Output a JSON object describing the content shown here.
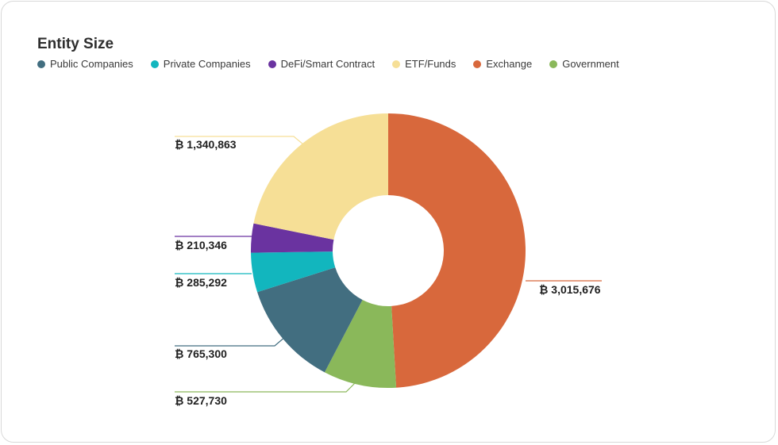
{
  "chart_data": {
    "type": "pie",
    "donut": true,
    "title": "Entity Size",
    "legend_position": "top-left",
    "categories": [
      "Public Companies",
      "Private Companies",
      "DeFi/Smart Contract",
      "ETF/Funds",
      "Exchange",
      "Government"
    ],
    "values": [
      765300,
      285292,
      210346,
      1340863,
      3015676,
      527730
    ],
    "labels": [
      "₿ 765,300",
      "₿ 285,292",
      "₿ 210,346",
      "₿ 1,340,863",
      "₿ 3,015,676",
      "₿ 527,730"
    ],
    "colors": [
      "#426e80",
      "#12b6be",
      "#6a33a0",
      "#f6df96",
      "#d8683c",
      "#8ab85a"
    ]
  }
}
